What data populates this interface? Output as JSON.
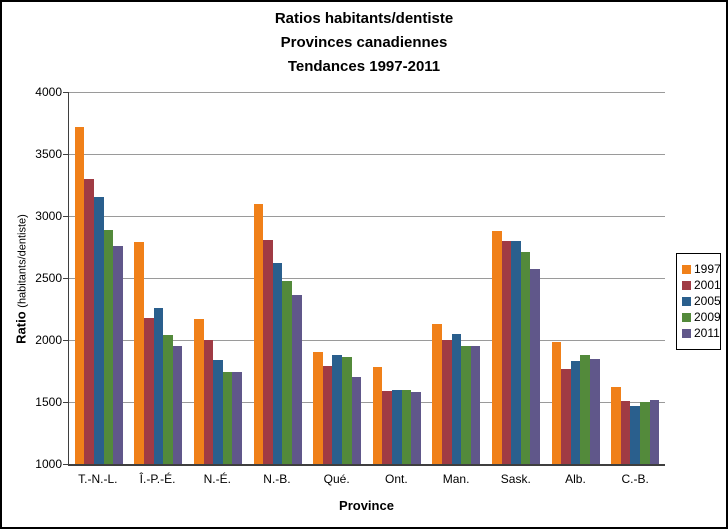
{
  "chart_data": {
    "type": "bar",
    "title_lines": [
      "Ratios habitants/dentiste",
      "Provinces canadiennes",
      "Tendances 1997-2011"
    ],
    "xlabel": "Province",
    "ylabel": "Ratio",
    "ylabel_units": "(habitants/dentiste)",
    "ylim": [
      1000,
      4000
    ],
    "yticks": [
      1000,
      1500,
      2000,
      2500,
      3000,
      3500,
      4000
    ],
    "grid": true,
    "legend_position": "right",
    "categories": [
      "T.-N.-L.",
      "Î.-P.-É.",
      "N.-É.",
      "N.-B.",
      "Qué.",
      "Ont.",
      "Man.",
      "Sask.",
      "Alb.",
      "C.-B."
    ],
    "series": [
      {
        "name": "1997",
        "color": "#F08019",
        "values": [
          3720,
          2790,
          2170,
          3100,
          1900,
          1780,
          2130,
          2880,
          1980,
          1620
        ]
      },
      {
        "name": "2001",
        "color": "#A03B44",
        "values": [
          3300,
          2180,
          2000,
          2810,
          1790,
          1590,
          2000,
          2800,
          1770,
          1510
        ]
      },
      {
        "name": "2005",
        "color": "#2A5F8D",
        "values": [
          3150,
          2260,
          1840,
          2620,
          1880,
          1600,
          2050,
          2800,
          1830,
          1470
        ]
      },
      {
        "name": "2009",
        "color": "#538A3B",
        "values": [
          2890,
          2040,
          1740,
          2480,
          1860,
          1600,
          1950,
          2710,
          1880,
          1500
        ]
      },
      {
        "name": "2011",
        "color": "#60578A",
        "values": [
          2760,
          1950,
          1740,
          2360,
          1700,
          1580,
          1950,
          2570,
          1850,
          1520
        ]
      }
    ]
  }
}
